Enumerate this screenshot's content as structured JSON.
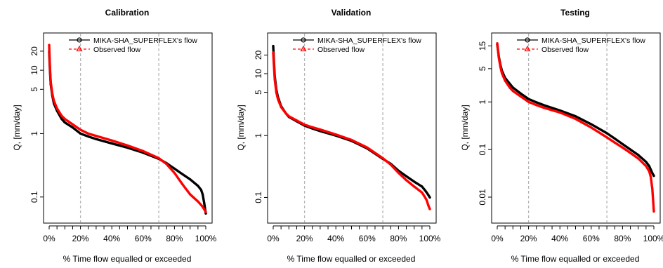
{
  "colors": {
    "simulated": "#000000",
    "observed": "#ff0000",
    "grid_vline": "#b5b5b5",
    "axis": "#000000"
  },
  "legend": {
    "simulated_label": "MIKA-SHA_SUPERFLEX's flow",
    "observed_label": "Observed flow",
    "placement": "top-right"
  },
  "chart_data": [
    {
      "type": "line",
      "title": "Calibration",
      "xlabel": "% Time flow equalled or exceeded",
      "ylabel": "Q, [mm/day]",
      "yscale": "log",
      "xlim": [
        0,
        100
      ],
      "ylim": [
        0.05,
        30
      ],
      "x_tick_labels": [
        "0%",
        "20%",
        "40%",
        "60%",
        "80%",
        "100%"
      ],
      "y_ticks": [
        0.1,
        1,
        5,
        10,
        20
      ],
      "y_tick_labels": [
        "0.1",
        "1",
        "5",
        "10",
        "20"
      ],
      "vlines": [
        20,
        70
      ],
      "series": [
        {
          "name": "MIKA-SHA_SUPERFLEX's flow",
          "color": "#000000",
          "x": [
            0,
            0.5,
            1,
            2,
            3,
            5,
            8,
            10,
            15,
            20,
            25,
            30,
            40,
            50,
            60,
            70,
            75,
            80,
            85,
            90,
            95,
            97,
            98,
            99,
            100
          ],
          "y": [
            20,
            10,
            6,
            4,
            3,
            2.3,
            1.7,
            1.5,
            1.25,
            1.0,
            0.9,
            0.82,
            0.7,
            0.6,
            0.5,
            0.4,
            0.34,
            0.28,
            0.23,
            0.19,
            0.15,
            0.13,
            0.11,
            0.08,
            0.055
          ]
        },
        {
          "name": "Observed flow",
          "color": "#ff0000",
          "x": [
            0,
            0.5,
            1,
            2,
            3,
            5,
            8,
            10,
            15,
            20,
            25,
            30,
            40,
            50,
            60,
            70,
            75,
            80,
            85,
            90,
            95,
            97,
            98,
            99,
            100
          ],
          "y": [
            25,
            11,
            6.5,
            4.3,
            3.3,
            2.5,
            1.9,
            1.7,
            1.4,
            1.15,
            1.0,
            0.92,
            0.78,
            0.65,
            0.53,
            0.41,
            0.33,
            0.24,
            0.16,
            0.11,
            0.085,
            0.075,
            0.07,
            0.064,
            0.058
          ]
        }
      ]
    },
    {
      "type": "line",
      "title": "Validation",
      "xlabel": "% Time flow equalled or exceeded",
      "ylabel": "Q, [mm/day]",
      "yscale": "log",
      "xlim": [
        0,
        100
      ],
      "ylim": [
        0.05,
        35
      ],
      "x_tick_labels": [
        "0%",
        "20%",
        "40%",
        "60%",
        "80%",
        "100%"
      ],
      "y_ticks": [
        0.1,
        1,
        5,
        10,
        20
      ],
      "y_tick_labels": [
        "0.1",
        "1",
        "5",
        "10",
        "20"
      ],
      "vlines": [
        20,
        70
      ],
      "series": [
        {
          "name": "MIKA-SHA_SUPERFLEX's flow",
          "color": "#000000",
          "x": [
            0,
            0.5,
            1,
            2,
            3,
            5,
            8,
            10,
            15,
            20,
            25,
            30,
            40,
            50,
            60,
            70,
            75,
            80,
            85,
            90,
            95,
            97,
            98,
            99,
            100
          ],
          "y": [
            28,
            15,
            9,
            5.5,
            4.2,
            3.0,
            2.3,
            2.0,
            1.7,
            1.45,
            1.3,
            1.18,
            1.0,
            0.82,
            0.62,
            0.42,
            0.35,
            0.27,
            0.22,
            0.18,
            0.15,
            0.13,
            0.12,
            0.11,
            0.1
          ]
        },
        {
          "name": "Observed flow",
          "color": "#ff0000",
          "x": [
            0,
            0.5,
            1,
            2,
            3,
            5,
            8,
            10,
            15,
            20,
            25,
            30,
            40,
            50,
            60,
            70,
            75,
            80,
            85,
            90,
            95,
            97,
            98,
            99,
            100
          ],
          "y": [
            22,
            13,
            8,
            5.0,
            3.9,
            2.9,
            2.3,
            2.05,
            1.75,
            1.5,
            1.36,
            1.25,
            1.04,
            0.85,
            0.64,
            0.43,
            0.34,
            0.25,
            0.19,
            0.15,
            0.12,
            0.1,
            0.09,
            0.075,
            0.065
          ]
        }
      ]
    },
    {
      "type": "line",
      "title": "Testing",
      "xlabel": "% Time flow equalled or exceeded",
      "ylabel": "Q, [mm/day]",
      "yscale": "log",
      "xlim": [
        0,
        100
      ],
      "ylim": [
        0.004,
        20
      ],
      "x_tick_labels": [
        "0%",
        "20%",
        "40%",
        "60%",
        "80%",
        "100%"
      ],
      "y_ticks": [
        0.01,
        0.1,
        1,
        5,
        15
      ],
      "y_tick_labels": [
        "0.01",
        "0.1",
        "1",
        "5",
        "15"
      ],
      "vlines": [
        20,
        70
      ],
      "series": [
        {
          "name": "MIKA-SHA_SUPERFLEX's flow",
          "color": "#000000",
          "x": [
            0,
            0.5,
            1,
            2,
            3,
            5,
            8,
            10,
            15,
            20,
            25,
            30,
            40,
            50,
            60,
            70,
            75,
            80,
            85,
            90,
            95,
            97,
            98,
            99,
            100
          ],
          "y": [
            16,
            12,
            9,
            6,
            4.5,
            3.2,
            2.4,
            2.0,
            1.5,
            1.15,
            0.98,
            0.85,
            0.66,
            0.5,
            0.34,
            0.22,
            0.17,
            0.13,
            0.1,
            0.077,
            0.055,
            0.045,
            0.038,
            0.032,
            0.028
          ]
        },
        {
          "name": "Observed flow",
          "color": "#ff0000",
          "x": [
            0,
            0.5,
            1,
            2,
            3,
            5,
            8,
            10,
            15,
            20,
            25,
            30,
            40,
            50,
            60,
            70,
            75,
            80,
            85,
            90,
            95,
            97,
            98,
            99,
            100
          ],
          "y": [
            17,
            12,
            8.5,
            5.5,
            4.0,
            2.8,
            2.0,
            1.7,
            1.3,
            1.0,
            0.86,
            0.75,
            0.6,
            0.44,
            0.29,
            0.18,
            0.14,
            0.11,
            0.085,
            0.065,
            0.045,
            0.035,
            0.027,
            0.015,
            0.005
          ]
        }
      ]
    }
  ]
}
